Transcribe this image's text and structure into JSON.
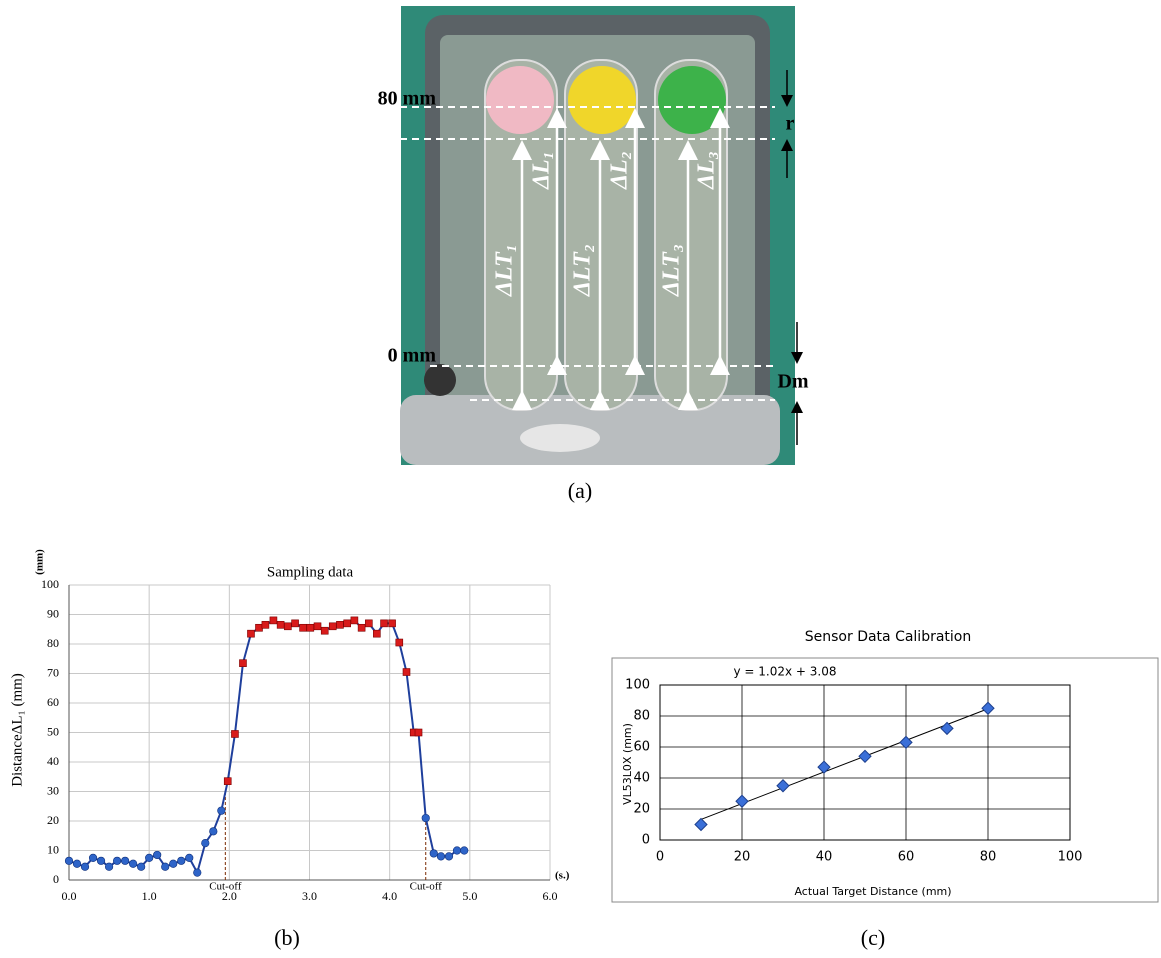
{
  "photo": {
    "scale_top": "80 mm",
    "scale_bottom": "0 mm",
    "r": "r",
    "dm": "Dm",
    "tubes": [
      {
        "total": "ΔLT₁",
        "travel": "ΔL₁"
      },
      {
        "total": "ΔLT₂",
        "travel": "ΔL₂"
      },
      {
        "total": "ΔLT₃",
        "travel": "ΔL₃"
      }
    ]
  },
  "captions": [
    "(a)",
    "(b)",
    "(c)"
  ],
  "chart_data": [
    {
      "type": "line",
      "title": "Sampling data",
      "y_unit": "(mm)",
      "x_unit": "(s.)",
      "y_label": "DistanceΔL₁ (mm)",
      "x": [
        0.0,
        0.1,
        0.2,
        0.3,
        0.4,
        0.5,
        0.6,
        0.7,
        0.8,
        0.9,
        1.0,
        1.1,
        1.2,
        1.3,
        1.4,
        1.5,
        1.6,
        1.7,
        1.8,
        1.9,
        1.98,
        2.07,
        2.17,
        2.27,
        2.37,
        2.45,
        2.55,
        2.64,
        2.73,
        2.82,
        2.92,
        3.01,
        3.1,
        3.19,
        3.29,
        3.38,
        3.47,
        3.56,
        3.65,
        3.74,
        3.84,
        3.93,
        4.03,
        4.12,
        4.21,
        4.3,
        4.36,
        4.45,
        4.55,
        4.64,
        4.74,
        4.84,
        4.93
      ],
      "series": [
        {
          "color": "#1f3f9c",
          "values": [
            6.5,
            5.5,
            4.5,
            7.5,
            6.5,
            4.5,
            6.5,
            6.5,
            5.5,
            4.5,
            7.5,
            8.5,
            4.5,
            5.5,
            6.5,
            7.5,
            2.5,
            12.5,
            16.5,
            23.5,
            33.5,
            49.5,
            73.5,
            83.5,
            85.5,
            86.5,
            88,
            86.5,
            86,
            87,
            85.5,
            85.5,
            86,
            84.5,
            86,
            86.5,
            87,
            88,
            85.5,
            87,
            83.5,
            87,
            87,
            80.5,
            70.5,
            50,
            50,
            21,
            9,
            8,
            8,
            10,
            10
          ],
          "point_colors": [
            "#2e64c8",
            "#2e64c8",
            "#2e64c8",
            "#2e64c8",
            "#2e64c8",
            "#2e64c8",
            "#2e64c8",
            "#2e64c8",
            "#2e64c8",
            "#2e64c8",
            "#2e64c8",
            "#2e64c8",
            "#2e64c8",
            "#2e64c8",
            "#2e64c8",
            "#2e64c8",
            "#2e64c8",
            "#2e64c8",
            "#2e64c8",
            "#2e64c8",
            "#d81b1b",
            "#d81b1b",
            "#d81b1b",
            "#d81b1b",
            "#d81b1b",
            "#d81b1b",
            "#d81b1b",
            "#d81b1b",
            "#d81b1b",
            "#d81b1b",
            "#d81b1b",
            "#d81b1b",
            "#d81b1b",
            "#d81b1b",
            "#d81b1b",
            "#d81b1b",
            "#d81b1b",
            "#d81b1b",
            "#d81b1b",
            "#d81b1b",
            "#d81b1b",
            "#d81b1b",
            "#d81b1b",
            "#d81b1b",
            "#d81b1b",
            "#d81b1b",
            "#d81b1b",
            "#2e64c8",
            "#2e64c8",
            "#2e64c8",
            "#2e64c8",
            "#2e64c8",
            "#2e64c8"
          ]
        }
      ],
      "annotations": [
        {
          "text": "Cut-off",
          "x": 1.95
        },
        {
          "text": "Cut-off",
          "x": 4.45
        }
      ],
      "xlim": [
        0,
        6
      ],
      "xticks": [
        {
          "value": 0,
          "label": "0.0"
        },
        {
          "value": 1,
          "label": "1.0"
        },
        {
          "value": 2,
          "label": "2.0"
        },
        {
          "value": 3,
          "label": "3.0"
        },
        {
          "value": 4,
          "label": "4.0"
        },
        {
          "value": 5,
          "label": "5.0"
        },
        {
          "value": 6,
          "label": "6.0"
        }
      ],
      "ylim": [
        0,
        100
      ],
      "yticks": [
        0,
        10,
        20,
        30,
        40,
        50,
        60,
        70,
        80,
        90,
        100
      ],
      "grid": true
    },
    {
      "type": "scatter",
      "title": "Sensor Data Calibration",
      "x_label": "Actual Target Distance  (mm)",
      "y_label": "VL53L0X  (mm)",
      "x": [
        10,
        20,
        30,
        40,
        50,
        60,
        70,
        80
      ],
      "series": [
        {
          "color": "#3a6fd8",
          "values": [
            10,
            25,
            35,
            47,
            54,
            63,
            72,
            85
          ]
        }
      ],
      "trendline": {
        "label": "y = 1.02x + 3.08",
        "slope": 1.02,
        "intercept": 3.08
      },
      "xlim": [
        0,
        100
      ],
      "xticks": [
        0,
        20,
        40,
        60,
        80,
        100
      ],
      "ylim": [
        0,
        100
      ],
      "yticks": [
        0,
        20,
        40,
        60,
        80,
        100
      ],
      "grid": true
    }
  ]
}
